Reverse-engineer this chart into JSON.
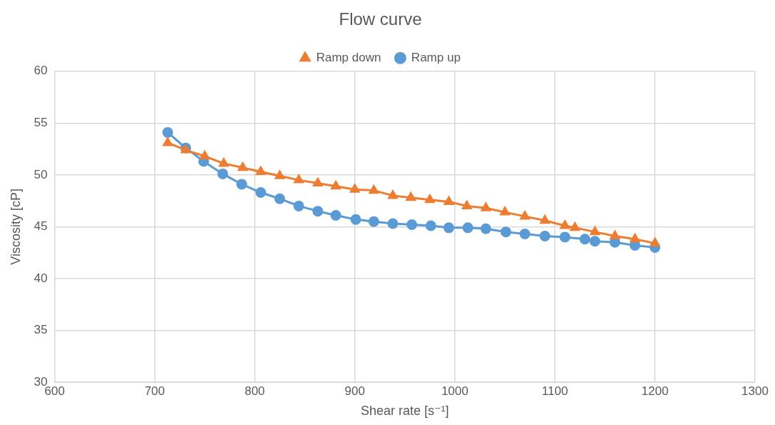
{
  "chart_data": {
    "type": "line",
    "title": "Flow curve",
    "xlabel": "Shear rate [s⁻¹]",
    "ylabel": "Viscosity [cP]",
    "xlim": [
      600,
      1300
    ],
    "xticks": [
      600,
      700,
      800,
      900,
      1000,
      1100,
      1200,
      1300
    ],
    "ylim": [
      30,
      60
    ],
    "yticks": [
      30,
      35,
      40,
      45,
      50,
      55,
      60
    ],
    "grid": true,
    "legend": "top",
    "line_style": "solid",
    "series": [
      {
        "name": "Ramp up",
        "color": "#5b9bd5",
        "marker": "circle",
        "x": [
          713,
          731,
          749,
          768,
          787,
          806,
          825,
          844,
          863,
          881,
          901,
          919,
          938,
          957,
          976,
          994,
          1013,
          1031,
          1051,
          1070,
          1090,
          1110,
          1130,
          1140,
          1160,
          1180,
          1200
        ],
        "values": [
          54.1,
          52.6,
          51.3,
          50.1,
          49.1,
          48.3,
          47.7,
          47.0,
          46.5,
          46.1,
          45.7,
          45.5,
          45.3,
          45.2,
          45.1,
          44.9,
          44.9,
          44.8,
          44.5,
          44.3,
          44.1,
          44.0,
          43.8,
          43.6,
          43.5,
          43.2,
          43.0
        ]
      },
      {
        "name": "Ramp down",
        "color": "#ed7d31",
        "marker": "triangle",
        "x": [
          713,
          731,
          750,
          769,
          788,
          806,
          825,
          844,
          863,
          881,
          900,
          919,
          938,
          956,
          975,
          994,
          1012,
          1031,
          1050,
          1070,
          1090,
          1110,
          1120,
          1140,
          1160,
          1180,
          1200
        ],
        "values": [
          53.1,
          52.4,
          51.8,
          51.1,
          50.7,
          50.3,
          49.9,
          49.5,
          49.2,
          48.9,
          48.6,
          48.5,
          48.0,
          47.8,
          47.6,
          47.4,
          47.0,
          46.8,
          46.4,
          46.0,
          45.6,
          45.1,
          44.9,
          44.5,
          44.1,
          43.8,
          43.4
        ]
      }
    ]
  }
}
